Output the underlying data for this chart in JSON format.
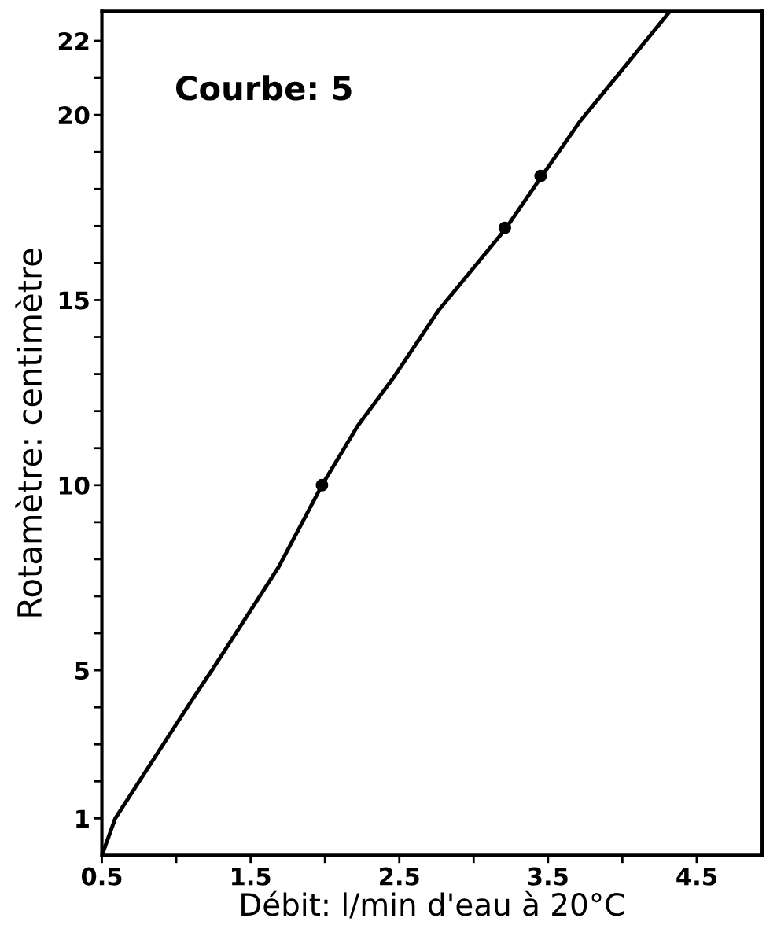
{
  "chart_data": {
    "type": "line",
    "xlabel": "Débit: l/min d'eau à 20°C",
    "ylabel": "Rotamètre: centimètre",
    "annotations": [
      "Courbe: 5"
    ],
    "series": [
      {
        "color": "#000000",
        "x": [
          0.5,
          0.59,
          1.09,
          1.24,
          1.69,
          1.98,
          2.22,
          2.46,
          2.76,
          3.21,
          3.45,
          3.71,
          4.32
        ],
        "values": [
          0.0,
          1.0,
          4.1,
          5.0,
          7.8,
          10.0,
          11.6,
          12.9,
          14.7,
          16.9,
          18.3,
          19.8,
          22.8
        ],
        "marker": "none",
        "line_style": "solid"
      },
      {
        "type": "scatter",
        "color": "#000000",
        "x": [
          1.98,
          3.21,
          3.45
        ],
        "values": [
          10.0,
          16.95,
          18.35
        ],
        "marker": "circle"
      }
    ],
    "xlim": [
      0.5,
      4.94
    ],
    "ylim": [
      0,
      22.8
    ],
    "xticks": [
      0.5,
      {
        "value": 1.0,
        "label": null
      },
      1.5,
      {
        "value": 2.0,
        "label": null
      },
      2.5,
      {
        "value": 3.0,
        "label": null
      },
      3.5,
      {
        "value": 4.0,
        "label": null
      },
      4.5
    ],
    "yticks": [
      1,
      {
        "value": 2,
        "label": null
      },
      {
        "value": 3,
        "label": null
      },
      {
        "value": 4,
        "label": null
      },
      5,
      {
        "value": 6,
        "label": null
      },
      {
        "value": 7,
        "label": null
      },
      {
        "value": 8,
        "label": null
      },
      {
        "value": 9,
        "label": null
      },
      10,
      {
        "value": 11,
        "label": null
      },
      {
        "value": 12,
        "label": null
      },
      {
        "value": 13,
        "label": null
      },
      {
        "value": 14,
        "label": null
      },
      15,
      {
        "value": 16,
        "label": null
      },
      {
        "value": 17,
        "label": null
      },
      {
        "value": 18,
        "label": null
      },
      {
        "value": 19,
        "label": null
      },
      20,
      {
        "value": 21,
        "label": null
      },
      22
    ],
    "grid": false,
    "legend": false
  }
}
